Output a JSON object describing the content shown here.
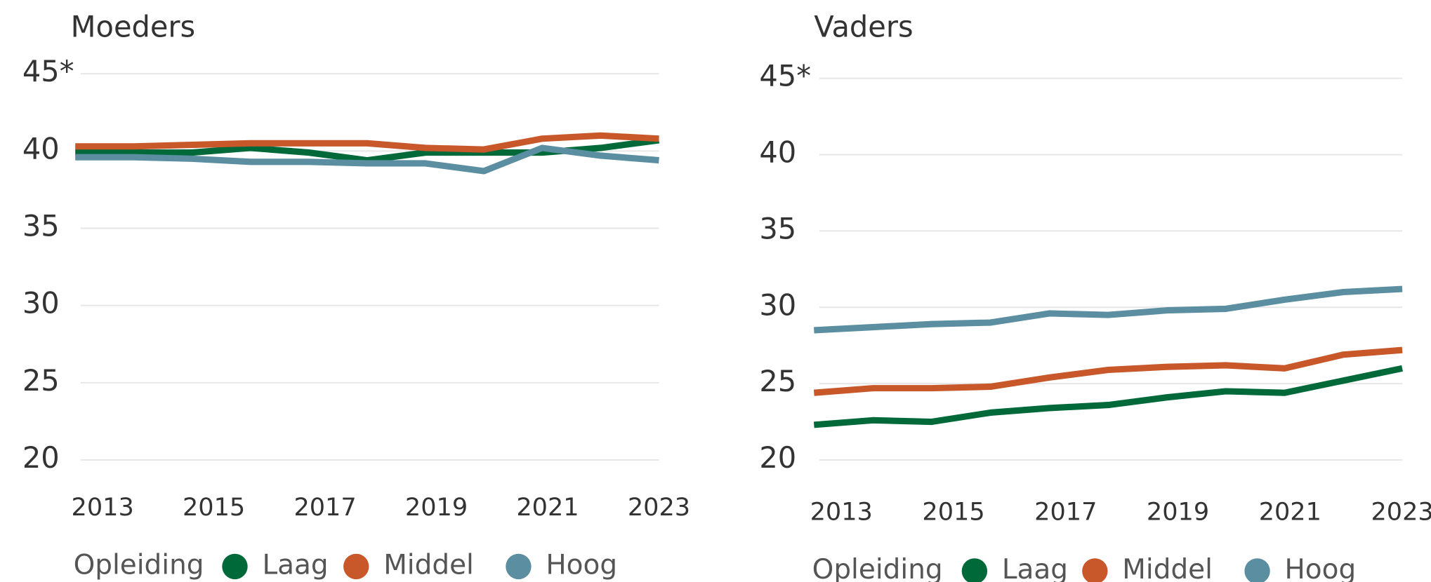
{
  "chart_data": [
    {
      "type": "line",
      "title": "Moeders",
      "x": [
        2013,
        2014,
        2015,
        2016,
        2017,
        2018,
        2019,
        2020,
        2021,
        2022,
        2023
      ],
      "xlim": [
        2013,
        2023
      ],
      "xticks": [
        2013,
        2015,
        2017,
        2019,
        2021,
        2023
      ],
      "ylim": [
        20,
        45
      ],
      "yticks": [
        20,
        25,
        30,
        35,
        40,
        {
          "value": 45,
          "label": "45*"
        }
      ],
      "grid": true,
      "legend_title": "Opleiding",
      "legend": "bottom",
      "series": [
        {
          "name": "Laag",
          "color": "#00693a",
          "values": [
            39.9,
            39.9,
            39.9,
            40.2,
            39.9,
            39.4,
            39.9,
            39.9,
            39.9,
            40.2,
            40.7
          ]
        },
        {
          "name": "Middel",
          "color": "#c8572a",
          "values": [
            40.3,
            40.3,
            40.4,
            40.5,
            40.5,
            40.5,
            40.2,
            40.1,
            40.8,
            41.0,
            40.8
          ]
        },
        {
          "name": "Hoog",
          "color": "#5b8ea0",
          "values": [
            39.6,
            39.6,
            39.5,
            39.3,
            39.3,
            39.2,
            39.2,
            38.7,
            40.2,
            39.7,
            39.4
          ]
        }
      ]
    },
    {
      "type": "line",
      "title": "Vaders",
      "x": [
        2013,
        2014,
        2015,
        2016,
        2017,
        2018,
        2019,
        2020,
        2021,
        2022,
        2023
      ],
      "xlim": [
        2013,
        2023
      ],
      "xticks": [
        2013,
        2015,
        2017,
        2019,
        2021,
        2023
      ],
      "ylim": [
        20,
        45
      ],
      "yticks": [
        20,
        25,
        30,
        35,
        40,
        {
          "value": 45,
          "label": "45*"
        }
      ],
      "grid": true,
      "legend_title": "Opleiding",
      "legend": "bottom",
      "series": [
        {
          "name": "Laag",
          "color": "#00693a",
          "values": [
            22.3,
            22.6,
            22.5,
            23.1,
            23.4,
            23.6,
            24.1,
            24.5,
            24.4,
            25.2,
            26.0
          ]
        },
        {
          "name": "Middel",
          "color": "#c8572a",
          "values": [
            24.4,
            24.7,
            24.7,
            24.8,
            25.4,
            25.9,
            26.1,
            26.2,
            26.0,
            26.9,
            27.2
          ]
        },
        {
          "name": "Hoog",
          "color": "#5b8ea0",
          "values": [
            28.5,
            28.7,
            28.9,
            29.0,
            29.6,
            29.5,
            29.8,
            29.9,
            30.5,
            31.0,
            31.2
          ]
        }
      ]
    }
  ]
}
